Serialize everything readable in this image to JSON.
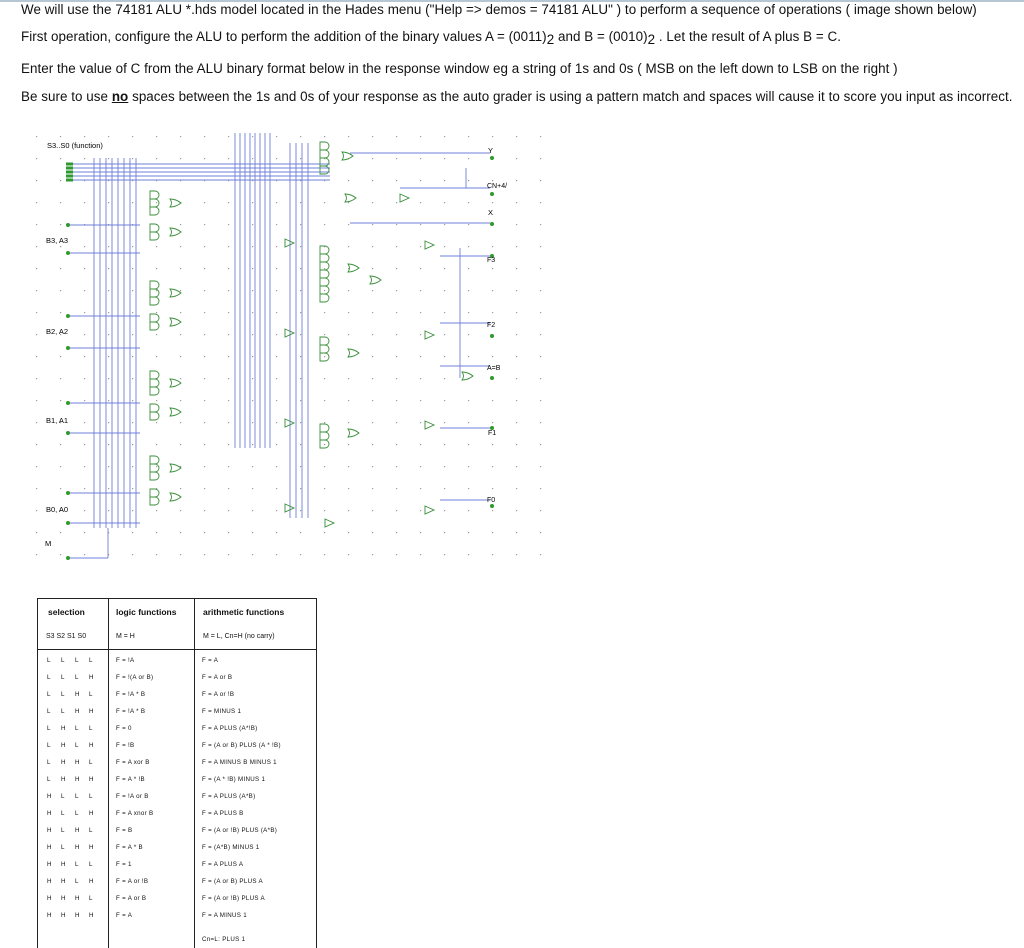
{
  "question": {
    "line1": "We will use the 74181 ALU *.hds model located in the Hades menu (\"Help => demos = 74181 ALU\" ) to perform a sequence of operations ( image shown below)",
    "line2_pre": "First operation,  configure the ALU to perform the addition of the binary values A = (0011)",
    "line2_sub1": "2",
    "line2_mid": "  and B = (0010)",
    "line2_sub2": "2",
    "line2_post": " .  Let the  result of A plus B = C.",
    "line3": "Enter the value of C from the ALU  binary format below in the response window eg a string of 1s and 0s  ( MSB on the left  down to LSB on the right )",
    "line4_pre": "Be sure to use ",
    "line4_em": "no",
    "line4_post": " spaces between the 1s and 0s of your response as the auto grader is using a pattern match and spaces will cause it to score you input as incorrect."
  },
  "circuit": {
    "labels": {
      "s": "S3..S0 (function)",
      "b3": "B3, A3",
      "b2": "B2, A2",
      "b1": "B1, A1",
      "b0": "B0, A0",
      "m": "M",
      "y": "Y",
      "cn4": "CN+4/",
      "x": "X",
      "f3": "F3",
      "f2": "F2",
      "aeqb": "A=B",
      "f1": "F1",
      "f0": "F0"
    }
  },
  "table": {
    "headers": {
      "selection": "selection",
      "logic": "logic functions",
      "arith": "arithmetic functions"
    },
    "subheaders": {
      "selection": "S3  S2  S1  S0",
      "logic": "M = H",
      "arith": "M = L, Cn=H (no carry)"
    },
    "rows": [
      {
        "sel": [
          "L",
          "L",
          "L",
          "L"
        ],
        "logic": "F = !A",
        "arith": "F = A"
      },
      {
        "sel": [
          "L",
          "L",
          "L",
          "H"
        ],
        "logic": "F = !(A or B)",
        "arith": "F = A or B"
      },
      {
        "sel": [
          "L",
          "L",
          "H",
          "L"
        ],
        "logic": "F = !A * B",
        "arith": "F = A or !B"
      },
      {
        "sel": [
          "L",
          "L",
          "H",
          "H"
        ],
        "logic": "F = !A * B",
        "arith": "F = MINUS 1"
      },
      {
        "sel": [
          "L",
          "H",
          "L",
          "L"
        ],
        "logic": "F = 0",
        "arith": "F = A PLUS (A*!B)"
      },
      {
        "sel": [
          "L",
          "H",
          "L",
          "H"
        ],
        "logic": "F = !B",
        "arith": "F = (A or B) PLUS (A * !B)"
      },
      {
        "sel": [
          "L",
          "H",
          "H",
          "L"
        ],
        "logic": "F = A xor B",
        "arith": "F = A MINUS B MINUS 1"
      },
      {
        "sel": [
          "L",
          "H",
          "H",
          "H"
        ],
        "logic": "F = A * !B",
        "arith": "F = (A * !B) MINUS 1"
      },
      {
        "sel": [
          "H",
          "L",
          "L",
          "L"
        ],
        "logic": "F = !A or B",
        "arith": "F = A PLUS (A*B)"
      },
      {
        "sel": [
          "H",
          "L",
          "L",
          "H"
        ],
        "logic": "F = A xnor B",
        "arith": "F = A PLUS B"
      },
      {
        "sel": [
          "H",
          "L",
          "H",
          "L"
        ],
        "logic": "F = B",
        "arith": "F = (A or !B) PLUS (A*B)"
      },
      {
        "sel": [
          "H",
          "L",
          "H",
          "H"
        ],
        "logic": "F = A * B",
        "arith": "F = (A*B) MINUS 1"
      },
      {
        "sel": [
          "H",
          "H",
          "L",
          "L"
        ],
        "logic": "F = 1",
        "arith": "F = A PLUS A"
      },
      {
        "sel": [
          "H",
          "H",
          "L",
          "H"
        ],
        "logic": "F = A or !B",
        "arith": "F = (A or B) PLUS A"
      },
      {
        "sel": [
          "H",
          "H",
          "H",
          "L"
        ],
        "logic": "F = A or B",
        "arith": "F = (A or !B) PLUS A"
      },
      {
        "sel": [
          "H",
          "H",
          "H",
          "H"
        ],
        "logic": "F = A",
        "arith": "F = A MINUS 1"
      }
    ],
    "footer": "Cn=L:   PLUS 1"
  },
  "colors": {
    "wire": "#6f7fd8",
    "gate": "#3a8f3a",
    "port": "#2e9a2e",
    "text": "#111111"
  }
}
